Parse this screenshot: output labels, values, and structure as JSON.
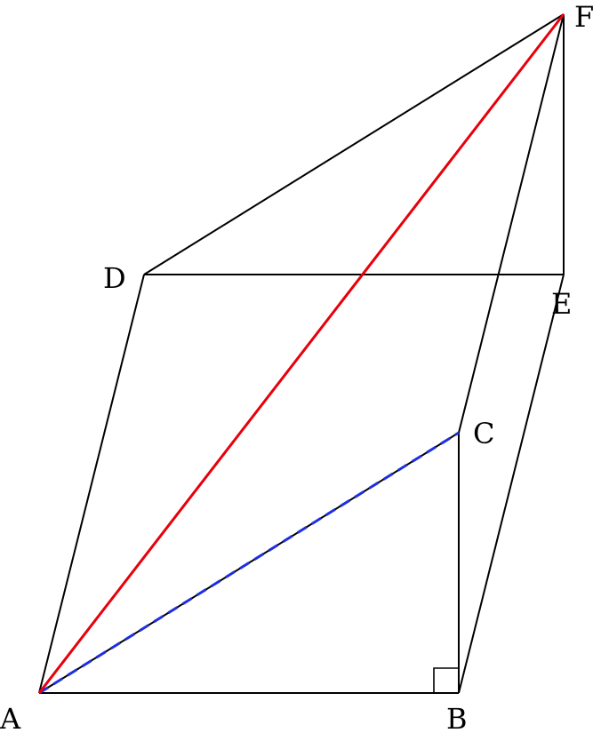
{
  "labels": {
    "A": "A",
    "B": "B",
    "C": "C",
    "D": "D",
    "E": "E",
    "F": "F"
  },
  "colors": {
    "edge": "#000000",
    "diagonal_AF": "#e8000b",
    "segment_AC_dashed": "#1f2fe0",
    "background": "#ffffff"
  },
  "features": {
    "right_angle_at": "B",
    "highlighted_segment": "AF",
    "dashed_segment": "AC"
  }
}
